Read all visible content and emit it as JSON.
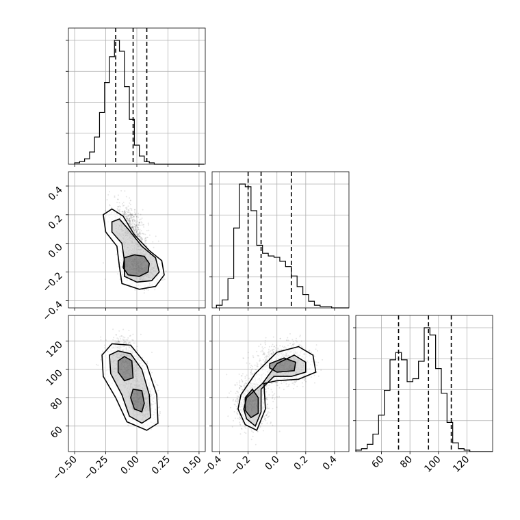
{
  "chart_data": {
    "type": "corner",
    "parameters": 3,
    "axes": [
      {
        "range": [
          -0.55,
          0.55
        ],
        "ticks": [
          -0.5,
          -0.25,
          0.0,
          0.25,
          0.5
        ],
        "tick_labels": [
          "−0.50",
          "−0.25",
          "0.00",
          "0.25",
          "0.50"
        ]
      },
      {
        "range": [
          -0.45,
          0.5
        ],
        "ticks": [
          -0.4,
          -0.2,
          0.0,
          0.2,
          0.4
        ],
        "tick_labels": [
          "−0.4",
          "−0.2",
          "0.0",
          "0.2",
          "0.4"
        ]
      },
      {
        "range": [
          42,
          138
        ],
        "ticks": [
          60,
          80,
          100,
          120
        ],
        "tick_labels": [
          "60",
          "80",
          "100",
          "120"
        ]
      }
    ],
    "grid": true,
    "histograms": [
      {
        "bin_start": -0.5,
        "bin_width": 0.04,
        "counts": [
          1,
          2,
          4,
          9,
          20,
          38,
          60,
          79,
          91,
          83,
          57,
          33,
          14,
          6,
          2,
          1,
          0,
          0,
          0,
          0,
          0,
          0,
          0,
          0,
          0,
          0
        ],
        "quantiles": [
          -0.17,
          -0.03,
          0.08
        ]
      },
      {
        "bin_start": -0.42,
        "bin_width": 0.04,
        "counts": [
          2,
          6,
          22,
          60,
          93,
          91,
          73,
          47,
          41,
          39,
          38,
          35,
          31,
          24,
          16,
          10,
          5,
          2,
          1,
          1,
          0,
          0,
          0,
          0,
          0
        ],
        "quantiles": [
          -0.2,
          -0.11,
          0.1
        ]
      },
      {
        "bin_start": 42,
        "bin_width": 4,
        "counts": [
          1,
          2,
          5,
          12,
          25,
          42,
          63,
          68,
          63,
          48,
          50,
          62,
          85,
          80,
          57,
          40,
          20,
          6,
          2,
          1,
          0,
          0,
          0,
          0
        ],
        "quantiles": [
          72,
          93,
          109
        ]
      }
    ],
    "scatter_panels": [
      {
        "x_param": 0,
        "y_param": 1,
        "modes": [
          {
            "x": -0.05,
            "y": 0.1,
            "sx": 0.07,
            "sy": 0.09,
            "rho": -0.5,
            "weight": 0.45
          },
          {
            "x": 0.02,
            "y": -0.16,
            "sx": 0.07,
            "sy": 0.06,
            "rho": -0.3,
            "weight": 0.55
          }
        ],
        "contours": [
          [
            [
              -0.27,
              0.2
            ],
            [
              -0.2,
              0.24
            ],
            [
              -0.11,
              0.19
            ],
            [
              -0.02,
              0.06
            ],
            [
              0.1,
              -0.05
            ],
            [
              0.2,
              -0.12
            ],
            [
              0.22,
              -0.22
            ],
            [
              0.15,
              -0.3
            ],
            [
              0.02,
              -0.32
            ],
            [
              -0.12,
              -0.28
            ],
            [
              -0.14,
              -0.16
            ],
            [
              -0.16,
              -0.02
            ],
            [
              -0.25,
              0.08
            ],
            [
              -0.27,
              0.2
            ]
          ],
          [
            [
              -0.2,
              0.15
            ],
            [
              -0.14,
              0.17
            ],
            [
              -0.07,
              0.1
            ],
            [
              0.04,
              -0.02
            ],
            [
              0.15,
              -0.1
            ],
            [
              0.18,
              -0.2
            ],
            [
              0.12,
              -0.26
            ],
            [
              0.0,
              -0.27
            ],
            [
              -0.1,
              -0.23
            ],
            [
              -0.1,
              -0.12
            ],
            [
              -0.12,
              0.0
            ],
            [
              -0.2,
              0.08
            ],
            [
              -0.2,
              0.15
            ]
          ],
          [
            [
              -0.1,
              -0.1
            ],
            [
              -0.02,
              -0.08
            ],
            [
              0.06,
              -0.09
            ],
            [
              0.1,
              -0.14
            ],
            [
              0.09,
              -0.2
            ],
            [
              0.02,
              -0.23
            ],
            [
              -0.07,
              -0.22
            ],
            [
              -0.11,
              -0.17
            ],
            [
              -0.1,
              -0.1
            ]
          ]
        ]
      },
      {
        "x_param": 0,
        "y_param": 2,
        "modes": [
          {
            "x": -0.1,
            "y": 106,
            "sx": 0.07,
            "sy": 8,
            "rho": -0.2,
            "weight": 0.5
          },
          {
            "x": 0.03,
            "y": 79,
            "sx": 0.06,
            "sy": 8,
            "rho": -0.3,
            "weight": 0.5
          }
        ],
        "contours": [
          [
            [
              -0.28,
              110
            ],
            [
              -0.2,
              118
            ],
            [
              -0.05,
              117
            ],
            [
              0.08,
              103
            ],
            [
              0.16,
              82
            ],
            [
              0.17,
              62
            ],
            [
              0.08,
              57
            ],
            [
              -0.08,
              63
            ],
            [
              -0.17,
              80
            ],
            [
              -0.27,
              95
            ],
            [
              -0.28,
              110
            ]
          ],
          [
            [
              -0.22,
              110
            ],
            [
              -0.15,
              113
            ],
            [
              -0.05,
              111
            ],
            [
              0.04,
              100
            ],
            [
              0.1,
              82
            ],
            [
              0.11,
              66
            ],
            [
              0.04,
              62
            ],
            [
              -0.06,
              67
            ],
            [
              -0.12,
              82
            ],
            [
              -0.21,
              97
            ],
            [
              -0.22,
              110
            ]
          ],
          [
            [
              -0.15,
              106
            ],
            [
              -0.1,
              109
            ],
            [
              -0.04,
              106
            ],
            [
              -0.03,
              94
            ],
            [
              -0.1,
              92
            ],
            [
              -0.15,
              98
            ],
            [
              -0.15,
              106
            ]
          ],
          [
            [
              -0.03,
              86
            ],
            [
              0.04,
              85
            ],
            [
              0.06,
              76
            ],
            [
              0.04,
              70
            ],
            [
              -0.02,
              72
            ],
            [
              -0.05,
              80
            ],
            [
              -0.03,
              86
            ]
          ]
        ]
      },
      {
        "x_param": 1,
        "y_param": 2,
        "modes": [
          {
            "x": 0.05,
            "y": 104,
            "sx": 0.1,
            "sy": 7,
            "rho": 0.1,
            "weight": 0.5
          },
          {
            "x": -0.17,
            "y": 77,
            "sx": 0.06,
            "sy": 9,
            "rho": 0.1,
            "weight": 0.5
          }
        ],
        "contours": [
          [
            [
              -0.25,
              82
            ],
            [
              -0.15,
              97
            ],
            [
              0.0,
              112
            ],
            [
              0.15,
              116
            ],
            [
              0.25,
              110
            ],
            [
              0.27,
              98
            ],
            [
              0.15,
              93
            ],
            [
              0.0,
              92
            ],
            [
              -0.09,
              90
            ],
            [
              -0.08,
              72
            ],
            [
              -0.14,
              57
            ],
            [
              -0.22,
              61
            ],
            [
              -0.27,
              72
            ],
            [
              -0.25,
              82
            ]
          ],
          [
            [
              -0.21,
              80
            ],
            [
              -0.1,
              90
            ],
            [
              0.0,
              104
            ],
            [
              0.12,
              110
            ],
            [
              0.2,
              105
            ],
            [
              0.2,
              98
            ],
            [
              0.1,
              95
            ],
            [
              -0.02,
              95
            ],
            [
              -0.11,
              86
            ],
            [
              -0.11,
              70
            ],
            [
              -0.15,
              60
            ],
            [
              -0.21,
              65
            ],
            [
              -0.23,
              72
            ],
            [
              -0.21,
              80
            ]
          ],
          [
            [
              -0.05,
              104
            ],
            [
              0.05,
              108
            ],
            [
              0.13,
              105
            ],
            [
              0.12,
              99
            ],
            [
              0.0,
              98
            ],
            [
              -0.05,
              101
            ],
            [
              -0.05,
              104
            ]
          ],
          [
            [
              -0.22,
              80
            ],
            [
              -0.17,
              86
            ],
            [
              -0.13,
              80
            ],
            [
              -0.13,
              69
            ],
            [
              -0.18,
              66
            ],
            [
              -0.22,
              71
            ],
            [
              -0.22,
              80
            ]
          ]
        ]
      }
    ]
  }
}
